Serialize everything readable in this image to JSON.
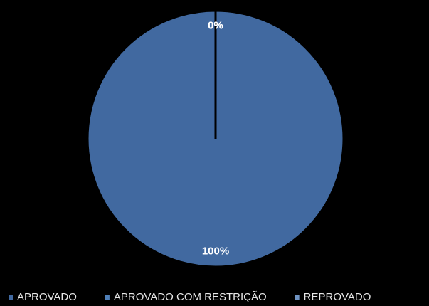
{
  "chart_data": {
    "type": "pie",
    "categories": [
      "APROVADO",
      "APROVADO COM RESTRIÇÃO",
      "REPROVADO"
    ],
    "values": [
      100,
      0,
      0
    ],
    "value_labels": [
      "100%",
      "0%",
      "0%"
    ],
    "colors": [
      "#4169a0",
      "#4f7fb8",
      "#6f93c2"
    ],
    "legend": "bottom"
  }
}
